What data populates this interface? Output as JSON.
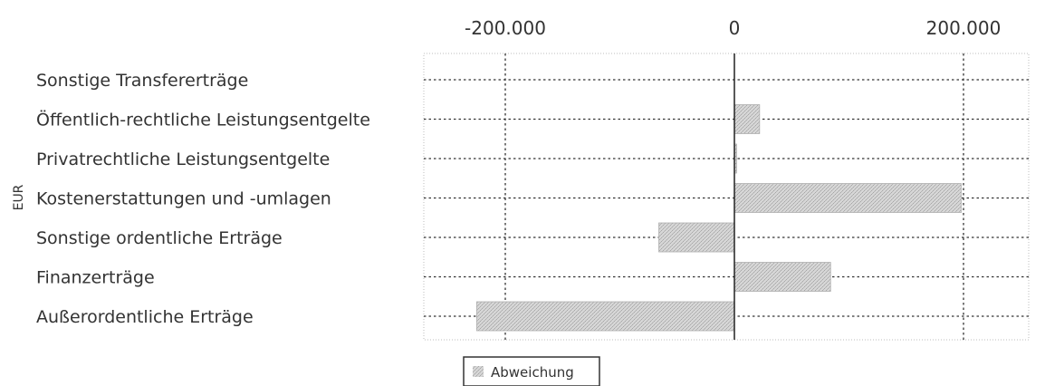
{
  "chart_data": {
    "type": "bar",
    "orientation": "horizontal",
    "title": "",
    "xlabel": "",
    "ylabel": "EUR",
    "xlim": [
      -270000,
      230000
    ],
    "xticks": [
      -200000,
      0,
      200000
    ],
    "xtick_labels": [
      "-200.000",
      "0",
      "200.000"
    ],
    "categories": [
      "Sonstige Transfererträge",
      "Öffentlich-rechtliche Leistungsentgelte",
      "Privatrechtliche Leistungsentgelte",
      "Kostenerstattungen und -umlagen",
      "Sonstige ordentliche Erträge",
      "Finanzerträge",
      "Außerordentliche Erträge"
    ],
    "series": [
      {
        "name": "Abweichung",
        "color": "#c8c8c8",
        "values": [
          0,
          22000,
          2000,
          198000,
          -66000,
          84000,
          -225000
        ]
      }
    ],
    "grid": true,
    "grid_style": "dotted",
    "legend": "bottom"
  }
}
